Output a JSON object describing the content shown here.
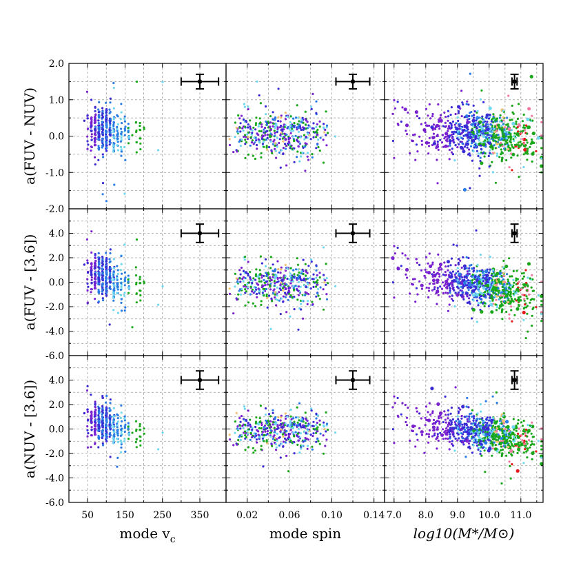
{
  "chart_data": {
    "type": "scatter",
    "layout": "3x3 grid of panels",
    "columns": [
      {
        "id": "vc",
        "xlabel": "mode v_c",
        "xlabel_main": "mode v",
        "xlabel_sub": "c",
        "xlim": [
          0,
          420
        ],
        "ticks": [
          50,
          150,
          250,
          350
        ],
        "tick_labels": [
          "50",
          "150",
          "250",
          "350"
        ],
        "minor_ticks": [
          100,
          200,
          300
        ],
        "error_center": 350,
        "error_half": 50
      },
      {
        "id": "spin",
        "xlabel": "mode spin",
        "xlabel_main": "mode spin",
        "xlabel_sub": "",
        "xlim": [
          0.0,
          0.15
        ],
        "ticks": [
          0.02,
          0.06,
          0.1,
          0.14
        ],
        "tick_labels": [
          "0.02",
          "0.06",
          "0.10",
          "0.14"
        ],
        "minor_ticks": [
          0.04,
          0.08,
          0.12
        ],
        "error_center": 0.12,
        "error_half": 0.016
      },
      {
        "id": "mass",
        "xlabel": "log10(M*/M⊙)",
        "xlim": [
          6.7,
          11.7
        ],
        "ticks": [
          7.0,
          8.0,
          9.0,
          10.0,
          11.0
        ],
        "tick_labels": [
          "7.0",
          "8.0",
          "9.0",
          "10.0",
          "11.0"
        ],
        "minor_ticks": [
          7.5,
          8.5,
          9.5,
          10.5,
          11.5
        ],
        "error_center": 10.8,
        "error_half": 0.08
      }
    ],
    "rows": [
      {
        "id": "fuv_nuv",
        "ylabel": "a(FUV - NUV)",
        "ylim": [
          -2.0,
          2.0
        ],
        "tick_values": [
          2.0,
          1.0,
          0.0,
          -1.0,
          -2.0
        ],
        "tick_labels": [
          "2.0",
          "1.0",
          "0.0",
          "-1.0",
          "-2.0"
        ],
        "minor_ticks": [
          1.5,
          0.5,
          -0.5,
          -1.5
        ],
        "error_y": 1.5,
        "error_half": 0.2
      },
      {
        "id": "fuv_36",
        "ylabel": "a(FUV - [3.6])",
        "ylim": [
          -6.0,
          6.0
        ],
        "tick_values": [
          4.0,
          2.0,
          0.0,
          -2.0,
          -4.0,
          -6.0
        ],
        "tick_labels": [
          "4.0",
          "2.0",
          "0.0",
          "-2.0",
          "-4.0",
          "-6.0"
        ],
        "minor_ticks": [
          5,
          3,
          1,
          -1,
          -3,
          -5
        ],
        "error_y": 4.0,
        "error_half": 0.75
      },
      {
        "id": "nuv_36",
        "ylabel": "a(NUV - [3.6])",
        "ylim": [
          -6.0,
          6.0
        ],
        "tick_values": [
          4.0,
          2.0,
          0.0,
          -2.0,
          -4.0,
          -6.0
        ],
        "tick_labels": [
          "4.0",
          "2.0",
          "0.0",
          "-2.0",
          "-4.0",
          "-6.0"
        ],
        "minor_ticks": [
          5,
          3,
          1,
          -1,
          -3,
          -5
        ],
        "error_y": 4.0,
        "error_half": 0.75
      }
    ],
    "color_classes": [
      "#7a22d0",
      "#3a2bd6",
      "#2a7be4",
      "#6fd8ee",
      "#1aa81a",
      "#f07aa0",
      "#e41a1a",
      "#f0c070"
    ],
    "point_counts": {
      "vc": 420,
      "spin": 430,
      "mass": 800
    },
    "grid": true,
    "error_bar_marker": "black point with error bars, top-right of each panel"
  }
}
